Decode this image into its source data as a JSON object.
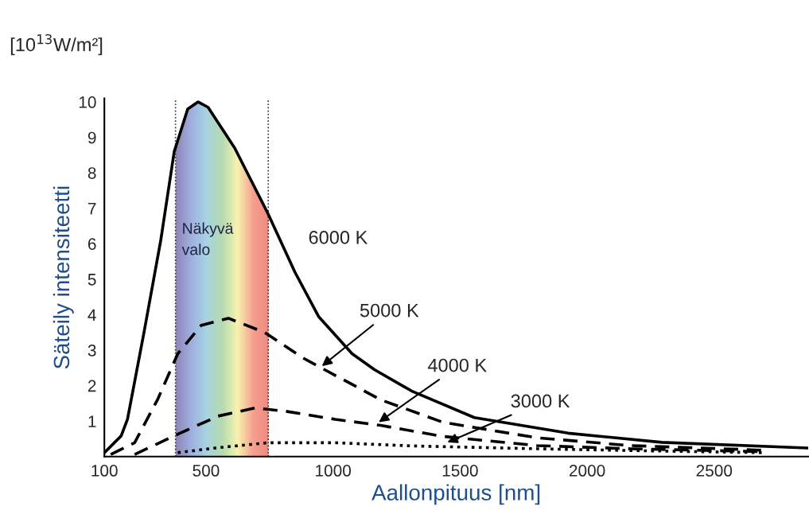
{
  "chart_data": {
    "type": "line",
    "xlabel": "Aallonpituus [nm]",
    "ylabel": "Säteily intensiteetti",
    "xlim": [
      100,
      2870
    ],
    "ylim": [
      0,
      10.1
    ],
    "xticks": [
      100,
      500,
      1000,
      1500,
      2000,
      2500
    ],
    "yticks": [
      1,
      2,
      3,
      4,
      5,
      6,
      7,
      8,
      9,
      10
    ],
    "grid": false,
    "legend": false,
    "marker": "none",
    "series": [
      {
        "color": "#000000",
        "line_style": "solid",
        "x": [
          100,
          166,
          191,
          256,
          322,
          375,
          428,
          469,
          508,
          613,
          744,
          850,
          943,
          1075,
          1163,
          1309,
          1556,
          1925,
          2294,
          2869
        ],
        "values": [
          0.11,
          0.58,
          1.05,
          3.5,
          6.1,
          8.6,
          9.8,
          10.0,
          9.85,
          8.7,
          6.85,
          5.2,
          3.95,
          2.9,
          2.45,
          1.85,
          1.1,
          0.66,
          0.4,
          0.24
        ]
      },
      {
        "color": "#000000",
        "line_style": "dashed",
        "x": [
          125,
          219,
          309,
          389,
          481,
          588,
          731,
          877,
          941,
          1188,
          1431,
          1802,
          2170,
          2688
        ],
        "values": [
          0.06,
          0.39,
          1.6,
          2.9,
          3.7,
          3.9,
          3.5,
          2.8,
          2.55,
          1.6,
          0.97,
          0.53,
          0.31,
          0.18
        ]
      },
      {
        "color": "#000000",
        "line_style": "dashed",
        "x": [
          219,
          389,
          547,
          692,
          811,
          1009,
          1187,
          1431,
          1802,
          2170,
          2688
        ],
        "values": [
          0.06,
          0.63,
          1.14,
          1.37,
          1.28,
          1.05,
          0.88,
          0.57,
          0.31,
          0.22,
          0.14
        ]
      },
      {
        "color": "#000000",
        "line_style": "dotted",
        "x": [
          389,
          547,
          744,
          1009,
          1313,
          1431,
          1802,
          2170,
          2688
        ],
        "values": [
          0.11,
          0.25,
          0.39,
          0.39,
          0.3,
          0.28,
          0.22,
          0.17,
          0.11
        ]
      }
    ],
    "bands": [
      {
        "axis": "x",
        "from": 380,
        "to": 745,
        "label": "Näkyvä\nvalo"
      }
    ],
    "ref_lines": [
      {
        "axis": "x",
        "value": 380,
        "color": "#333333",
        "line_style": "dotted"
      },
      {
        "axis": "x",
        "value": 745,
        "color": "#333333",
        "line_style": "dotted"
      }
    ],
    "annotations": [
      "[10$^{13}$W/m²]",
      {
        "text": "6000 K",
        "x": 850,
        "y": 5.2
      },
      {
        "text": "5000 K",
        "x": 956,
        "y": 2.55
      },
      {
        "text": "4000 K",
        "x": 1180,
        "y": 0.97
      },
      {
        "text": "3000 K",
        "x": 1450,
        "y": 0.4
      }
    ]
  }
}
